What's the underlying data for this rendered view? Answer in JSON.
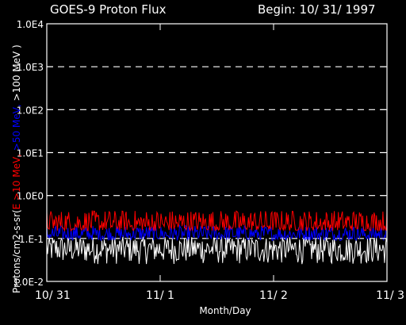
{
  "chart_data": {
    "type": "line",
    "title": "GOES-9 Proton Flux",
    "begin_label": "Begin: 10/ 31/ 1997",
    "xlabel": "Month/Day",
    "ylabel_parts": [
      {
        "text": "Protons/cm2-s-sr(",
        "color": "#ffffff"
      },
      {
        "text": "E >10 MeV,",
        "color": "#ff0000"
      },
      {
        "text": " >50 MeV,",
        "color": "#0000ff"
      },
      {
        "text": " >100 MeV )",
        "color": "#ffffff"
      }
    ],
    "x_ticks": [
      "10/ 31",
      "11/ 1",
      "11/ 2",
      "11/ 3"
    ],
    "x_range_days": [
      0,
      3
    ],
    "y_scale": "log",
    "y_ticks": [
      "1.0E-2",
      "1.E-1",
      "1.0E0",
      "1.0E1",
      "1.0E2",
      "1.0E3",
      "1.0E4"
    ],
    "ylim": [
      0.01,
      10000
    ],
    "grid": "dashed horizontal at decades",
    "background": "#000000",
    "series": [
      {
        "name": "E >10 MeV",
        "color": "#ff0000",
        "baseline": 0.2,
        "noise_low": 0.15,
        "noise_high": 0.45
      },
      {
        "name": ">50 MeV",
        "color": "#0000ff",
        "baseline": 0.12,
        "noise_low": 0.09,
        "noise_high": 0.2
      },
      {
        "name": ">100 MeV",
        "color": "#ffffff",
        "baseline": 0.055,
        "noise_low": 0.025,
        "noise_high": 0.11
      }
    ]
  }
}
